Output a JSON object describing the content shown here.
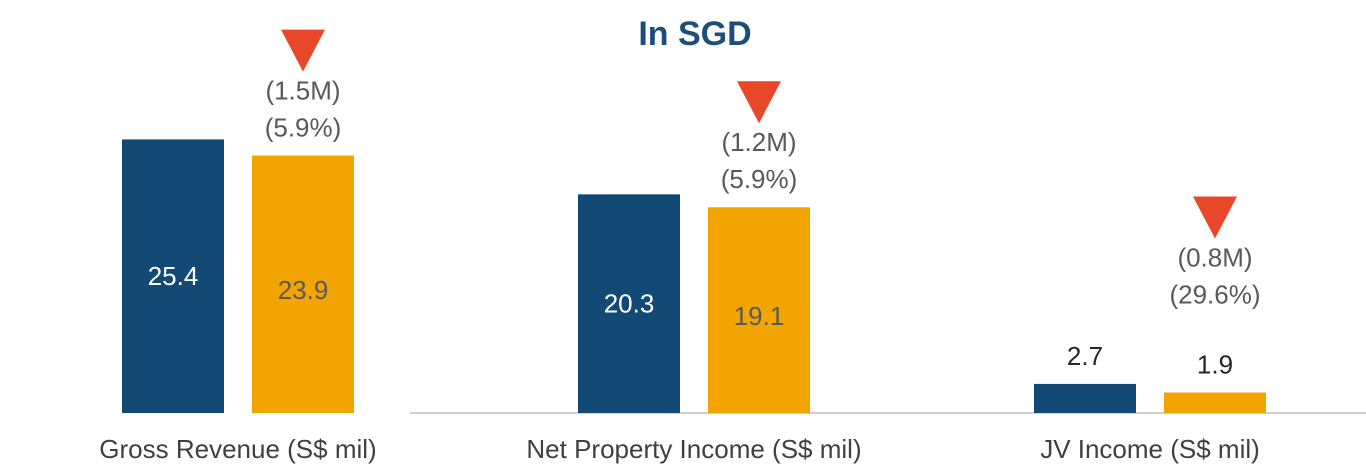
{
  "chart_data": {
    "type": "bar",
    "title": "In SGD",
    "categories": [
      "Gross Revenue (S$ mil)",
      "Net Property Income (S$ mil)",
      "JV Income (S$ mil)"
    ],
    "series": [
      {
        "color": "#124a75",
        "values": [
          25.4,
          20.3,
          2.7
        ]
      },
      {
        "color": "#f2a500",
        "values": [
          23.9,
          19.1,
          1.9
        ]
      }
    ],
    "annotations": [
      {
        "change": "(1.5M)",
        "percent": "(5.9%)"
      },
      {
        "change": "(1.2M)",
        "percent": "(5.9%)"
      },
      {
        "change": "(0.8M)",
        "percent": "(29.6%)"
      }
    ],
    "ylim": [
      0,
      35
    ]
  }
}
